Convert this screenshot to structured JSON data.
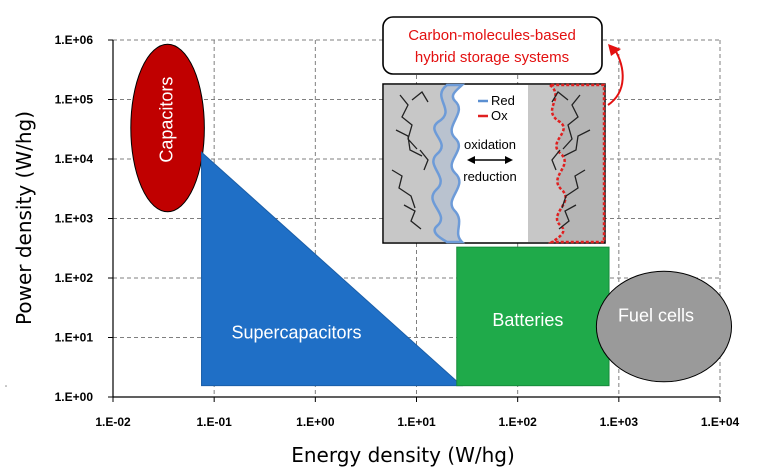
{
  "chart_data": {
    "type": "scatter",
    "title": "",
    "xlabel": "Energy density (W/hg)",
    "ylabel": "Power density (W/hg)",
    "xscale": "log",
    "yscale": "log",
    "xlim": [
      0.01,
      10000
    ],
    "ylim": [
      1,
      1000000
    ],
    "x_ticks": [
      {
        "value": 0.01,
        "label": "1.E-02"
      },
      {
        "value": 0.1,
        "label": "1.E-01"
      },
      {
        "value": 1,
        "label": "1.E+00"
      },
      {
        "value": 10,
        "label": "1.E+01"
      },
      {
        "value": 100,
        "label": "1.E+02"
      },
      {
        "value": 1000,
        "label": "1.E+03"
      },
      {
        "value": 10000,
        "label": "1.E+04"
      }
    ],
    "y_ticks": [
      {
        "value": 1,
        "label": "1.E+00"
      },
      {
        "value": 10,
        "label": "1.E+01"
      },
      {
        "value": 100,
        "label": "1.E+02"
      },
      {
        "value": 1000,
        "label": "1.E+03"
      },
      {
        "value": 10000,
        "label": "1.E+04"
      },
      {
        "value": 100000,
        "label": "1.E+05"
      },
      {
        "value": 1000000,
        "label": "1.E+06"
      }
    ],
    "grid": true,
    "regions": [
      {
        "name": "Capacitors",
        "shape": "ellipse",
        "color": "#c00000",
        "x_range": [
          0.015,
          0.08
        ],
        "y_range": [
          1300,
          850000
        ],
        "label_vertical": true
      },
      {
        "name": "Supercapacitors",
        "shape": "triangle",
        "color": "#1f6fc6",
        "vertices": [
          [
            0.075,
            13000
          ],
          [
            0.075,
            1.55
          ],
          [
            28,
            1.55
          ]
        ]
      },
      {
        "name": "Batteries",
        "shape": "rectangle",
        "color": "#1faa4a",
        "x_range": [
          25,
          800
        ],
        "y_range": [
          1.55,
          330
        ]
      },
      {
        "name": "Fuel cells",
        "shape": "ellipse",
        "color": "#9a9a9a",
        "x_range": [
          600,
          13000
        ],
        "y_range": [
          1.8,
          130
        ]
      }
    ],
    "annotations": [
      {
        "text_lines": [
          "Carbon-molecules-based",
          "hybrid storage systems"
        ],
        "color": "#e31010"
      }
    ]
  },
  "inset": {
    "legend": [
      {
        "label": "Red",
        "color": "#5b8fd1"
      },
      {
        "label": "Ox",
        "color": "#e02020"
      }
    ],
    "top_label": "oxidation",
    "bottom_label": "reduction"
  }
}
